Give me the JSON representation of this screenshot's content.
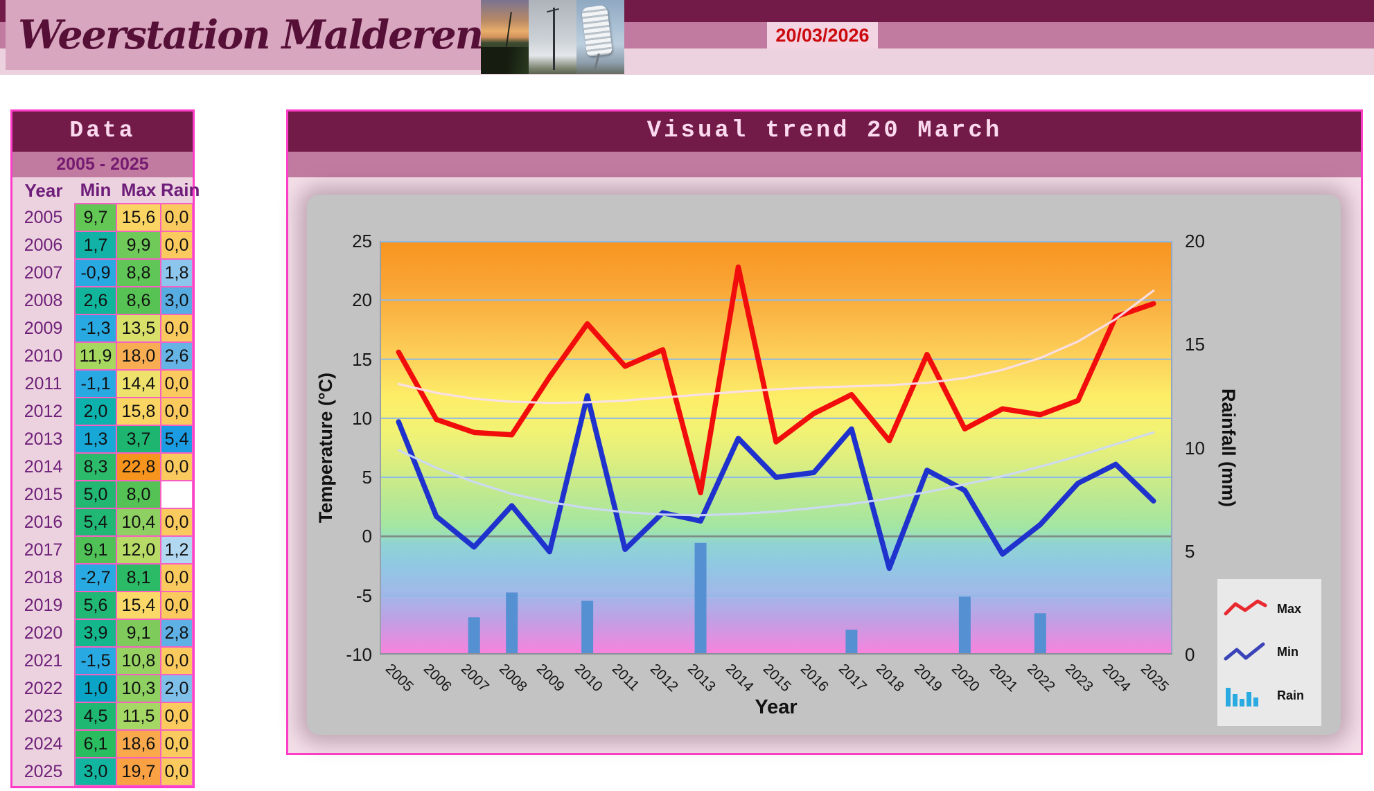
{
  "header": {
    "site_title": "Weerstation Malderen",
    "date": "20/03/2026",
    "colors": {
      "top_band": "#721b49",
      "mid_band": "#c17ba0",
      "light_band": "#ecd2de",
      "banner": "#d9a6c0",
      "date_text": "#cb0a0e",
      "date_bg": "#f2d4e2"
    }
  },
  "data_panel": {
    "title": "Data",
    "range_label": "2005 - 2025",
    "columns": [
      "Year",
      "Min",
      "Max",
      "Rain"
    ],
    "border_color": "#ff3dc8",
    "rows": [
      {
        "year": "2005",
        "min": "9,7",
        "max": "15,6",
        "rain": "0,0",
        "min_color": "#63c755",
        "max_color": "#fbd563",
        "rain_color": "#fbca5f"
      },
      {
        "year": "2006",
        "min": "1,7",
        "max": "9,9",
        "rain": "0,0",
        "min_color": "#12b2a6",
        "max_color": "#6fca59",
        "rain_color": "#fbca5f"
      },
      {
        "year": "2007",
        "min": "-0,9",
        "max": "8,8",
        "rain": "1,8",
        "min_color": "#29a9e1",
        "max_color": "#5fc657",
        "rain_color": "#8cc6ec"
      },
      {
        "year": "2008",
        "min": "2,6",
        "max": "8,6",
        "rain": "3,0",
        "min_color": "#10b59b",
        "max_color": "#58c355",
        "rain_color": "#57ace2"
      },
      {
        "year": "2009",
        "min": "-1,3",
        "max": "13,5",
        "rain": "0,0",
        "min_color": "#29a9e1",
        "max_color": "#d8e06a",
        "rain_color": "#fbca5f"
      },
      {
        "year": "2010",
        "min": "11,9",
        "max": "18,0",
        "rain": "2,6",
        "min_color": "#a6d75f",
        "max_color": "#f9ad52",
        "rain_color": "#66b4e6"
      },
      {
        "year": "2011",
        "min": "-1,1",
        "max": "14,4",
        "rain": "0,0",
        "min_color": "#29a9e1",
        "max_color": "#eee26c",
        "rain_color": "#fbca5f"
      },
      {
        "year": "2012",
        "min": "2,0",
        "max": "15,8",
        "rain": "0,0",
        "min_color": "#0cb2ab",
        "max_color": "#fbd563",
        "rain_color": "#fbca5f"
      },
      {
        "year": "2013",
        "min": "1,3",
        "max": "3,7",
        "rain": "5,4",
        "min_color": "#18a8d8",
        "max_color": "#1eb571",
        "rain_color": "#1b9ce2"
      },
      {
        "year": "2014",
        "min": "8,3",
        "max": "22,8",
        "rain": "0,0",
        "min_color": "#2cbb6b",
        "max_color": "#f7941e",
        "rain_color": "#fbca5f"
      },
      {
        "year": "2015",
        "min": "5,0",
        "max": "8,0",
        "rain": "",
        "min_color": "#22b873",
        "max_color": "#54c254",
        "rain_color": "#ffffff"
      },
      {
        "year": "2016",
        "min": "5,4",
        "max": "10,4",
        "rain": "0,0",
        "min_color": "#21b876",
        "max_color": "#8ed062",
        "rain_color": "#fbca5f"
      },
      {
        "year": "2017",
        "min": "9,1",
        "max": "12,0",
        "rain": "1,2",
        "min_color": "#4fc156",
        "max_color": "#b8da66",
        "rain_color": "#b2d7f1"
      },
      {
        "year": "2018",
        "min": "-2,7",
        "max": "8,1",
        "rain": "0,0",
        "min_color": "#29a9e1",
        "max_color": "#2bbb66",
        "rain_color": "#fbca5f"
      },
      {
        "year": "2019",
        "min": "5,6",
        "max": "15,4",
        "rain": "0,0",
        "min_color": "#21b876",
        "max_color": "#fbd968",
        "rain_color": "#fbca5f"
      },
      {
        "year": "2020",
        "min": "3,9",
        "max": "9,1",
        "rain": "2,8",
        "min_color": "#14b68b",
        "max_color": "#7ecb5c",
        "rain_color": "#5fb0e4"
      },
      {
        "year": "2021",
        "min": "-1,5",
        "max": "10,8",
        "rain": "0,0",
        "min_color": "#29a9e1",
        "max_color": "#97d263",
        "rain_color": "#fbca5f"
      },
      {
        "year": "2022",
        "min": "1,0",
        "max": "10,3",
        "rain": "2,0",
        "min_color": "#0aa4c6",
        "max_color": "#8ed062",
        "rain_color": "#7fc0ea"
      },
      {
        "year": "2023",
        "min": "4,5",
        "max": "11,5",
        "rain": "0,0",
        "min_color": "#1eb873",
        "max_color": "#a5d765",
        "rain_color": "#fbca5f"
      },
      {
        "year": "2024",
        "min": "6,1",
        "max": "18,6",
        "rain": "0,0",
        "min_color": "#2abd5f",
        "max_color": "#f9a94c",
        "rain_color": "#fbca5f"
      },
      {
        "year": "2025",
        "min": "3,0",
        "max": "19,7",
        "rain": "0,0",
        "min_color": "#12b5a0",
        "max_color": "#f9a143",
        "rain_color": "#fbca5f"
      }
    ]
  },
  "chart_panel": {
    "title": "Visual trend 20 March"
  },
  "chart_data": {
    "type": "line+bar",
    "title": "Visual trend 20 March",
    "categories": [
      2005,
      2006,
      2007,
      2008,
      2009,
      2010,
      2011,
      2012,
      2013,
      2014,
      2015,
      2016,
      2017,
      2018,
      2019,
      2020,
      2021,
      2022,
      2023,
      2024,
      2025
    ],
    "series": [
      {
        "name": "Max",
        "type": "line",
        "axis": "left",
        "color": "#f20d0d",
        "values": [
          15.6,
          9.9,
          8.8,
          8.6,
          13.5,
          18.0,
          14.4,
          15.8,
          3.7,
          22.8,
          8.0,
          10.4,
          12.0,
          8.1,
          15.4,
          9.1,
          10.8,
          10.3,
          11.5,
          18.6,
          19.7
        ]
      },
      {
        "name": "Min",
        "type": "line",
        "axis": "left",
        "color": "#2032cd",
        "values": [
          9.7,
          1.7,
          -0.9,
          2.6,
          -1.3,
          11.9,
          -1.1,
          2.0,
          1.3,
          8.3,
          5.0,
          5.4,
          9.1,
          -2.7,
          5.6,
          3.9,
          -1.5,
          1.0,
          4.5,
          6.1,
          3.0
        ]
      },
      {
        "name": "Rain",
        "type": "bar",
        "axis": "right",
        "color": "#5590d2",
        "values": [
          0,
          0,
          1.8,
          3.0,
          0,
          2.6,
          0,
          0,
          5.4,
          0,
          null,
          0,
          1.2,
          0,
          0,
          2.8,
          0,
          2.0,
          0,
          0,
          0
        ]
      }
    ],
    "trendlines": [
      {
        "for": "Max",
        "color": "#f8dfeb",
        "values": [
          12.9,
          12.15,
          11.65,
          11.4,
          11.3,
          11.35,
          11.5,
          11.75,
          12.0,
          12.25,
          12.45,
          12.6,
          12.7,
          12.8,
          13.0,
          13.4,
          14.1,
          15.1,
          16.5,
          18.4,
          20.8
        ]
      },
      {
        "for": "Min",
        "color": "#ccd8f6",
        "values": [
          7.3,
          5.8,
          4.6,
          3.6,
          2.9,
          2.4,
          2.05,
          1.85,
          1.8,
          1.9,
          2.1,
          2.4,
          2.75,
          3.2,
          3.75,
          4.4,
          5.1,
          5.9,
          6.8,
          7.8,
          8.8
        ]
      }
    ],
    "axes": {
      "left": {
        "label": "Temperature (°C)",
        "min": -10,
        "max": 25,
        "ticks": [
          25,
          20,
          15,
          10,
          5,
          0,
          -5,
          -10
        ]
      },
      "right": {
        "label": "Rainfall (mm)",
        "min": 0,
        "max": 20,
        "ticks": [
          20,
          15,
          10,
          5,
          0
        ]
      },
      "x": {
        "label": "Year"
      }
    },
    "grid": true,
    "legend": {
      "position": "bottom-right",
      "items": [
        "Max",
        "Min",
        "Rain"
      ]
    },
    "plot_background": "rainbow-gradient-orange-to-pink",
    "gridline_color": "#8fb9e6",
    "zero_line_color": "#7d8a84"
  }
}
